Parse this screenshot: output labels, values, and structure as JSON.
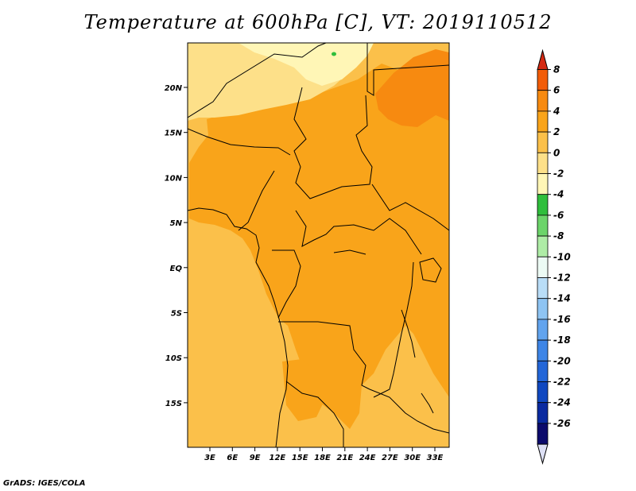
{
  "title": "Temperature at 600hPa [C], VT: 2019110512",
  "footer": "GrADS: IGES/COLA",
  "map": {
    "lat_labels": [
      "20N",
      "15N",
      "10N",
      "5N",
      "EQ",
      "5S",
      "10S",
      "15S"
    ],
    "lon_labels": [
      "3E",
      "6E",
      "9E",
      "12E",
      "15E",
      "18E",
      "21E",
      "24E",
      "27E",
      "30E",
      "33E"
    ]
  },
  "colorbar": {
    "levels": [
      "8",
      "6",
      "4",
      "2",
      "0",
      "-2",
      "-4",
      "-6",
      "-8",
      "-10",
      "-12",
      "-14",
      "-16",
      "-18",
      "-20",
      "-22",
      "-24",
      "-26"
    ],
    "colors": [
      "#d42a12",
      "#f25c08",
      "#f78a10",
      "#f9a41a",
      "#fbc04a",
      "#fde089",
      "#fff6b6",
      "#2fbe3c",
      "#6cd46a",
      "#aeeca6",
      "#ecfaf4",
      "#b9ddf7",
      "#8ec4f3",
      "#62a4ee",
      "#3d85e6",
      "#2366d8",
      "#1048c0",
      "#0a2aa0",
      "#0c0b6c",
      "#dde0f5"
    ]
  }
}
